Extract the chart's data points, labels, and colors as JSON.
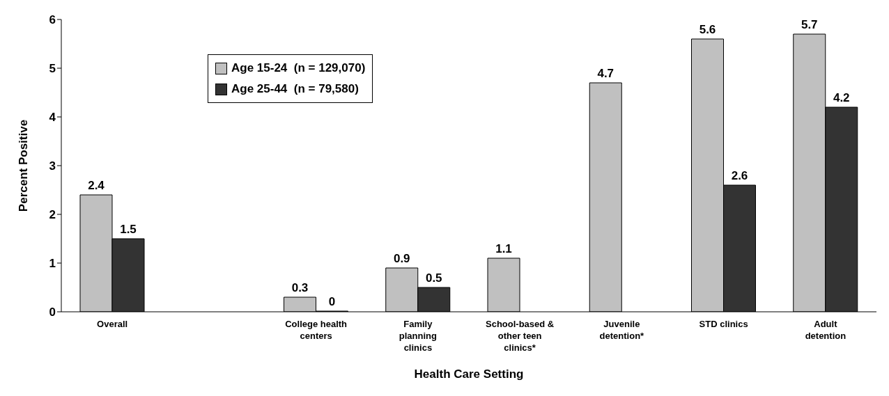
{
  "chart_data": {
    "type": "bar",
    "xlabel": "Health Care Setting",
    "ylabel": "Percent Positive",
    "categories": [
      "Overall",
      null,
      "College health centers",
      "Family planning clinics",
      "School-based & other teen clinics*",
      "Juvenile detention*",
      "STD clinics",
      "Adult detention"
    ],
    "series": [
      {
        "name": "Age 15-24  (n = 129,070)",
        "color": "#c0c0c0",
        "values": [
          2.4,
          null,
          0.3,
          0.9,
          1.1,
          4.7,
          5.6,
          5.7
        ]
      },
      {
        "name": "Age 25-44  (n = 79,580)",
        "color": "#333333",
        "values": [
          1.5,
          null,
          0,
          0.5,
          null,
          null,
          2.6,
          4.2
        ]
      }
    ],
    "ylim": [
      0,
      6
    ],
    "yticks": [
      0,
      1,
      2,
      3,
      4,
      5,
      6
    ],
    "grid": false,
    "legend": "top left",
    "data_labels": true
  }
}
